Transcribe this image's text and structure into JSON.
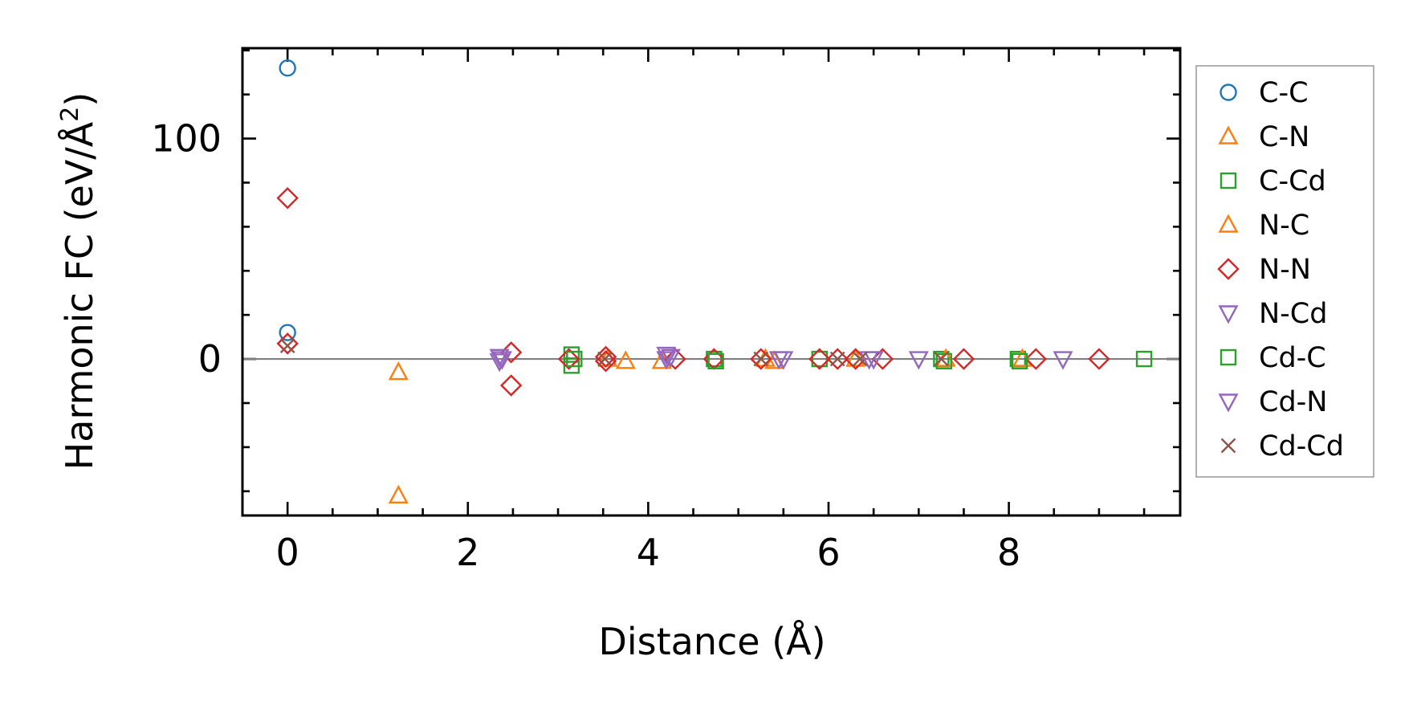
{
  "chart_data": {
    "type": "scatter",
    "title": "",
    "xlabel": "Distance (Å)",
    "ylabel_main": "Harmonic FC (eV/Å",
    "ylabel_sup": "2",
    "ylabel_end": ")",
    "xlim": [
      -0.5,
      9.9
    ],
    "ylim": [
      -71,
      141
    ],
    "x_ticks": [
      0,
      2,
      4,
      6,
      8
    ],
    "x_tick_labels": [
      "0",
      "2",
      "4",
      "6",
      "8"
    ],
    "y_ticks": [
      0,
      100
    ],
    "y_tick_labels": [
      "0",
      "100"
    ],
    "x_minor_step": 0.5,
    "y_minor_step": 20,
    "zero_line": true,
    "grid": false,
    "legend_position": "right, outside plot",
    "series": [
      {
        "name": "C-C",
        "marker": "circle",
        "color": "#1f77b4",
        "points": [
          [
            0,
            132
          ],
          [
            0,
            12
          ]
        ]
      },
      {
        "name": "C-N",
        "marker": "triangle-up",
        "color": "#ff7f0e",
        "points": [
          [
            1.23,
            -6
          ],
          [
            1.23,
            -62
          ],
          [
            3.75,
            -1
          ]
        ]
      },
      {
        "name": "C-Cd",
        "marker": "square",
        "color": "#2ca02c",
        "points": [
          [
            3.15,
            2
          ],
          [
            3.15,
            -3
          ],
          [
            4.73,
            0
          ],
          [
            5.9,
            0
          ],
          [
            7.25,
            0
          ],
          [
            8.1,
            0
          ],
          [
            9.5,
            0
          ]
        ]
      },
      {
        "name": "N-C",
        "marker": "triangle-up",
        "color": "#ff7f0e",
        "points": [
          [
            3.55,
            0
          ],
          [
            4.15,
            -1
          ],
          [
            5.3,
            0
          ],
          [
            5.4,
            -1
          ],
          [
            6.3,
            0
          ],
          [
            7.3,
            0
          ],
          [
            8.15,
            0
          ]
        ]
      },
      {
        "name": "N-N",
        "marker": "diamond",
        "color": "#d62728",
        "points": [
          [
            0,
            73
          ],
          [
            0,
            7
          ],
          [
            2.48,
            3
          ],
          [
            2.48,
            -12
          ],
          [
            3.12,
            0
          ],
          [
            3.53,
            1
          ],
          [
            3.53,
            -1
          ],
          [
            4.3,
            0
          ],
          [
            4.73,
            0
          ],
          [
            5.25,
            0
          ],
          [
            5.9,
            0
          ],
          [
            6.1,
            0
          ],
          [
            6.3,
            0
          ],
          [
            6.6,
            0
          ],
          [
            7.5,
            0
          ],
          [
            8.3,
            0
          ],
          [
            9.0,
            0
          ]
        ]
      },
      {
        "name": "N-Cd",
        "marker": "triangle-down",
        "color": "#9467bd",
        "points": [
          [
            2.35,
            1
          ],
          [
            2.35,
            -1
          ],
          [
            4.2,
            2
          ],
          [
            4.2,
            0
          ],
          [
            5.45,
            0
          ],
          [
            6.45,
            0
          ],
          [
            7.0,
            0
          ],
          [
            8.6,
            0
          ]
        ]
      },
      {
        "name": "Cd-C",
        "marker": "square",
        "color": "#2ca02c",
        "points": [
          [
            3.18,
            0
          ],
          [
            4.75,
            -1
          ],
          [
            7.28,
            -1
          ],
          [
            8.12,
            -1
          ]
        ]
      },
      {
        "name": "Cd-N",
        "marker": "triangle-down",
        "color": "#9467bd",
        "points": [
          [
            2.38,
            0
          ],
          [
            4.25,
            1
          ],
          [
            5.5,
            0
          ],
          [
            6.5,
            0
          ]
        ]
      },
      {
        "name": "Cd-Cd",
        "marker": "x",
        "color": "#8c564b",
        "points": [
          [
            0,
            6
          ],
          [
            3.52,
            0
          ],
          [
            5.25,
            0
          ],
          [
            6.1,
            0
          ],
          [
            6.35,
            0
          ],
          [
            7.25,
            0
          ]
        ]
      }
    ]
  }
}
